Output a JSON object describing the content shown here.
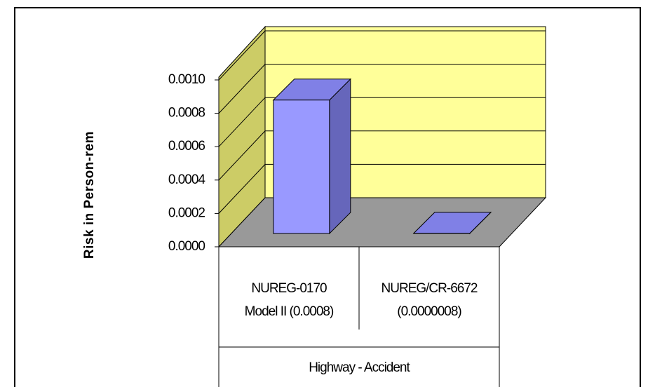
{
  "chart_data": {
    "type": "bar3d",
    "y_label": "Risk in Person-rem",
    "group_label": "Highway - Accident",
    "categories": [
      [
        "NUREG-0170",
        "Model II (0.0008)"
      ],
      [
        "NUREG/CR-6672",
        "(0.0000008)"
      ]
    ],
    "values": [
      0.0008,
      8e-07
    ],
    "color": "#9999ff",
    "ylim": [
      0,
      0.001
    ],
    "yticks": [
      {
        "value": 0,
        "label": "0.0000"
      },
      {
        "value": 0.0002,
        "label": "0.0002"
      },
      {
        "value": 0.0004,
        "label": "0.0004"
      },
      {
        "value": 0.0006,
        "label": "0.0006"
      },
      {
        "value": 0.0008,
        "label": "0.0008"
      },
      {
        "value": 0.001,
        "label": "0.0010"
      }
    ],
    "grid": true
  }
}
